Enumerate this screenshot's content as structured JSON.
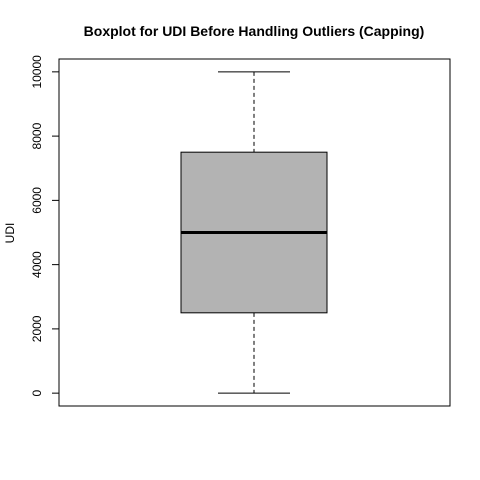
{
  "chart_data": {
    "type": "boxplot",
    "title": "Boxplot for UDI Before Handling Outliers (Capping)",
    "xlabel": "",
    "ylabel": "UDI",
    "ylim": [
      -400,
      10400
    ],
    "yticks": [
      0,
      2000,
      4000,
      6000,
      8000,
      10000
    ],
    "ytick_labels": [
      "0",
      "2000",
      "4000",
      "6000",
      "8000",
      "10000"
    ],
    "grid": false,
    "legend": "none",
    "box": {
      "min": 1,
      "q1": 2500,
      "median": 5000,
      "q3": 7500,
      "max": 10000,
      "outliers": []
    },
    "colors": {
      "box_fill": "#b3b3b3",
      "stroke": "#000000"
    }
  }
}
